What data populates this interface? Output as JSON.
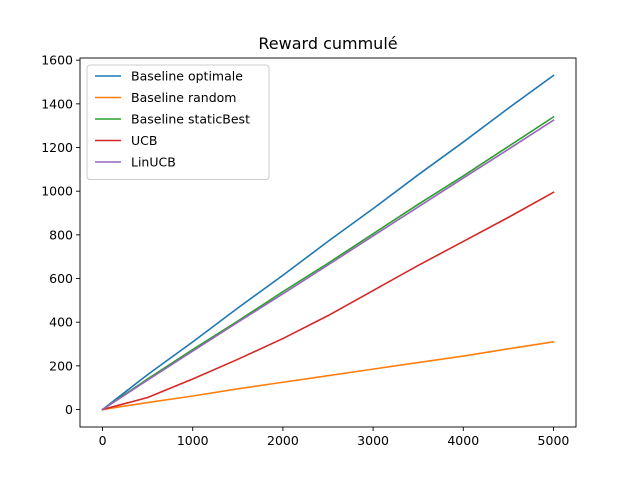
{
  "chart_data": {
    "type": "line",
    "title": "Reward cummulé",
    "xlabel": "",
    "ylabel": "",
    "xlim": [
      -250,
      5250
    ],
    "ylim": [
      -80,
      1610
    ],
    "xticks": [
      0,
      1000,
      2000,
      3000,
      4000,
      5000
    ],
    "yticks": [
      0,
      200,
      400,
      600,
      800,
      1000,
      1200,
      1400,
      1600
    ],
    "grid": false,
    "legend_position": "top-left",
    "series": [
      {
        "name": "Baseline optimale",
        "color": "#1f77b4",
        "x": [
          0,
          500,
          1000,
          1500,
          2000,
          2500,
          3000,
          3500,
          4000,
          4500,
          5000
        ],
        "y": [
          0,
          160,
          310,
          465,
          615,
          770,
          920,
          1075,
          1225,
          1380,
          1530
        ]
      },
      {
        "name": "Baseline random",
        "color": "#ff7f0e",
        "x": [
          0,
          500,
          1000,
          1500,
          2000,
          2500,
          3000,
          3500,
          4000,
          4500,
          5000
        ],
        "y": [
          0,
          32,
          62,
          95,
          125,
          155,
          185,
          215,
          245,
          278,
          310
        ]
      },
      {
        "name": "Baseline staticBest",
        "color": "#2ca02c",
        "x": [
          0,
          500,
          1000,
          1500,
          2000,
          2500,
          3000,
          3500,
          4000,
          4500,
          5000
        ],
        "y": [
          0,
          140,
          275,
          405,
          540,
          670,
          805,
          940,
          1070,
          1205,
          1340
        ]
      },
      {
        "name": "UCB",
        "color": "#d62728",
        "x": [
          0,
          500,
          1000,
          1500,
          2000,
          2500,
          3000,
          3500,
          4000,
          4500,
          5000
        ],
        "y": [
          0,
          55,
          140,
          230,
          325,
          430,
          545,
          660,
          770,
          880,
          995
        ]
      },
      {
        "name": "LinUCB",
        "color": "#9467bd",
        "x": [
          0,
          500,
          1000,
          1500,
          2000,
          2500,
          3000,
          3500,
          4000,
          4500,
          5000
        ],
        "y": [
          0,
          135,
          268,
          400,
          530,
          662,
          795,
          928,
          1060,
          1192,
          1325
        ]
      }
    ]
  }
}
